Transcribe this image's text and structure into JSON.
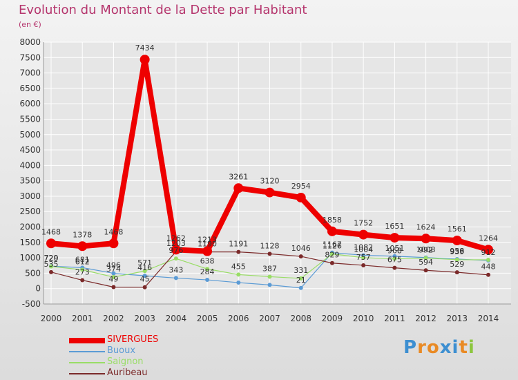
{
  "title": "Evolution du Montant de la Dette par Habitant",
  "subtitle": "(en €)",
  "logo": {
    "letters": [
      "P",
      "r",
      "o",
      "x",
      "i",
      "t",
      "i"
    ],
    "colors": [
      "#3d8fd1",
      "#e98a24",
      "#e98a24",
      "#3d8fd1",
      "#3d8fd1",
      "#e98a24",
      "#8cc63f"
    ]
  },
  "colors": {
    "title": "#b5356d",
    "grid": "#ffffff"
  },
  "chart_data": {
    "type": "line",
    "x": [
      "2000",
      "2001",
      "2002",
      "2003",
      "2004",
      "2005",
      "2006",
      "2007",
      "2008",
      "2009",
      "2010",
      "2011",
      "2012",
      "2013",
      "2014"
    ],
    "ylim": [
      -500,
      8000
    ],
    "yticks": [
      -500,
      0,
      500,
      1000,
      1500,
      2000,
      2500,
      3000,
      3500,
      4000,
      4500,
      5000,
      5500,
      6000,
      6500,
      7000,
      7500,
      8000
    ],
    "grid": true,
    "legend_position": "bottom-left",
    "series": [
      {
        "name": "SIVERGUES",
        "color": "#ee0000",
        "width": 8,
        "marker": 7,
        "values": [
          1468,
          1378,
          1468,
          7434,
          1262,
          1213,
          3261,
          3120,
          2954,
          1858,
          1752,
          1651,
          1624,
          1561,
          1264
        ],
        "labels": [
          "1468",
          "1378",
          "1468",
          "7434",
          "1262",
          "1213",
          "3261",
          "3120",
          "2954",
          "1858",
          "1752",
          "1651",
          "1624",
          "1561",
          "1264"
        ]
      },
      {
        "name": "Buoux",
        "color": "#5b9bd5",
        "width": 1.2,
        "marker": 3,
        "values": [
          729,
          681,
          496,
          416,
          343,
          284,
          194,
          119,
          21,
          1167,
          1082,
          1051,
          1008,
          958,
          912
        ],
        "labels": [
          "729",
          "681",
          "496",
          "416",
          "343",
          "284",
          "",
          "",
          "21",
          "1167",
          "1082",
          "1051",
          "1008",
          "958",
          "912"
        ]
      },
      {
        "name": "Saignon",
        "color": "#99dd66",
        "width": 1.2,
        "marker": 3,
        "values": [
          720,
          612,
          374,
          571,
          976,
          638,
          455,
          387,
          331,
          1126,
          1004,
          968,
          992,
          939,
          935
        ],
        "labels": [
          "720",
          "612",
          "374",
          "571",
          "976",
          "638",
          "455",
          "387",
          "331",
          "1126",
          "1004",
          "968",
          "992",
          "939",
          ""
        ]
      },
      {
        "name": "Auribeau",
        "color": "#7b2a2a",
        "width": 1.2,
        "marker": 3,
        "values": [
          535,
          273,
          49,
          45,
          1203,
          1190,
          1191,
          1128,
          1046,
          829,
          757,
          675,
          594,
          529,
          448
        ],
        "labels": [
          "535",
          "273",
          "49",
          "45",
          "1203",
          "1190",
          "1191",
          "1128",
          "1046",
          "829",
          "757",
          "675",
          "594",
          "529",
          "448"
        ]
      }
    ]
  }
}
